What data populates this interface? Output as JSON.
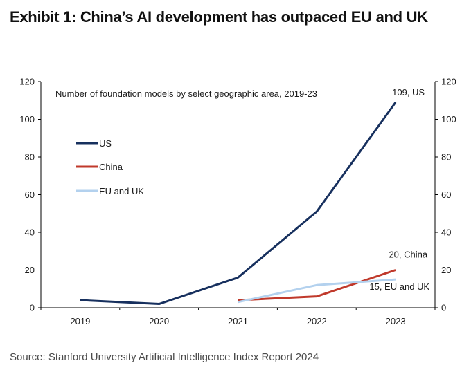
{
  "exhibit": {
    "title": "Exhibit 1: China’s AI development has outpaced EU and UK"
  },
  "source": "Source: Stanford University Artificial Intelligence Index Report 2024",
  "chart_data": {
    "type": "line",
    "title": "Number of foundation models by select geographic area, 2019-23",
    "xlabel": "",
    "ylabel": "",
    "categories": [
      "2019",
      "2020",
      "2021",
      "2022",
      "2023"
    ],
    "ylim": [
      0,
      120
    ],
    "yticks": [
      0,
      20,
      40,
      60,
      80,
      100,
      120
    ],
    "right_axis": true,
    "grid": false,
    "legend_position": "left",
    "series": [
      {
        "name": "US",
        "color": "#17305e",
        "values": [
          4,
          2,
          16,
          51,
          109
        ]
      },
      {
        "name": "China",
        "color": "#c0392b",
        "values": [
          null,
          null,
          4,
          6,
          20
        ]
      },
      {
        "name": "EU and UK",
        "color": "#b3d1ee",
        "values": [
          null,
          null,
          3,
          12,
          15
        ]
      }
    ],
    "annotations": [
      {
        "text": "109, US"
      },
      {
        "text": "20, China"
      },
      {
        "text": "15, EU and UK"
      }
    ]
  }
}
